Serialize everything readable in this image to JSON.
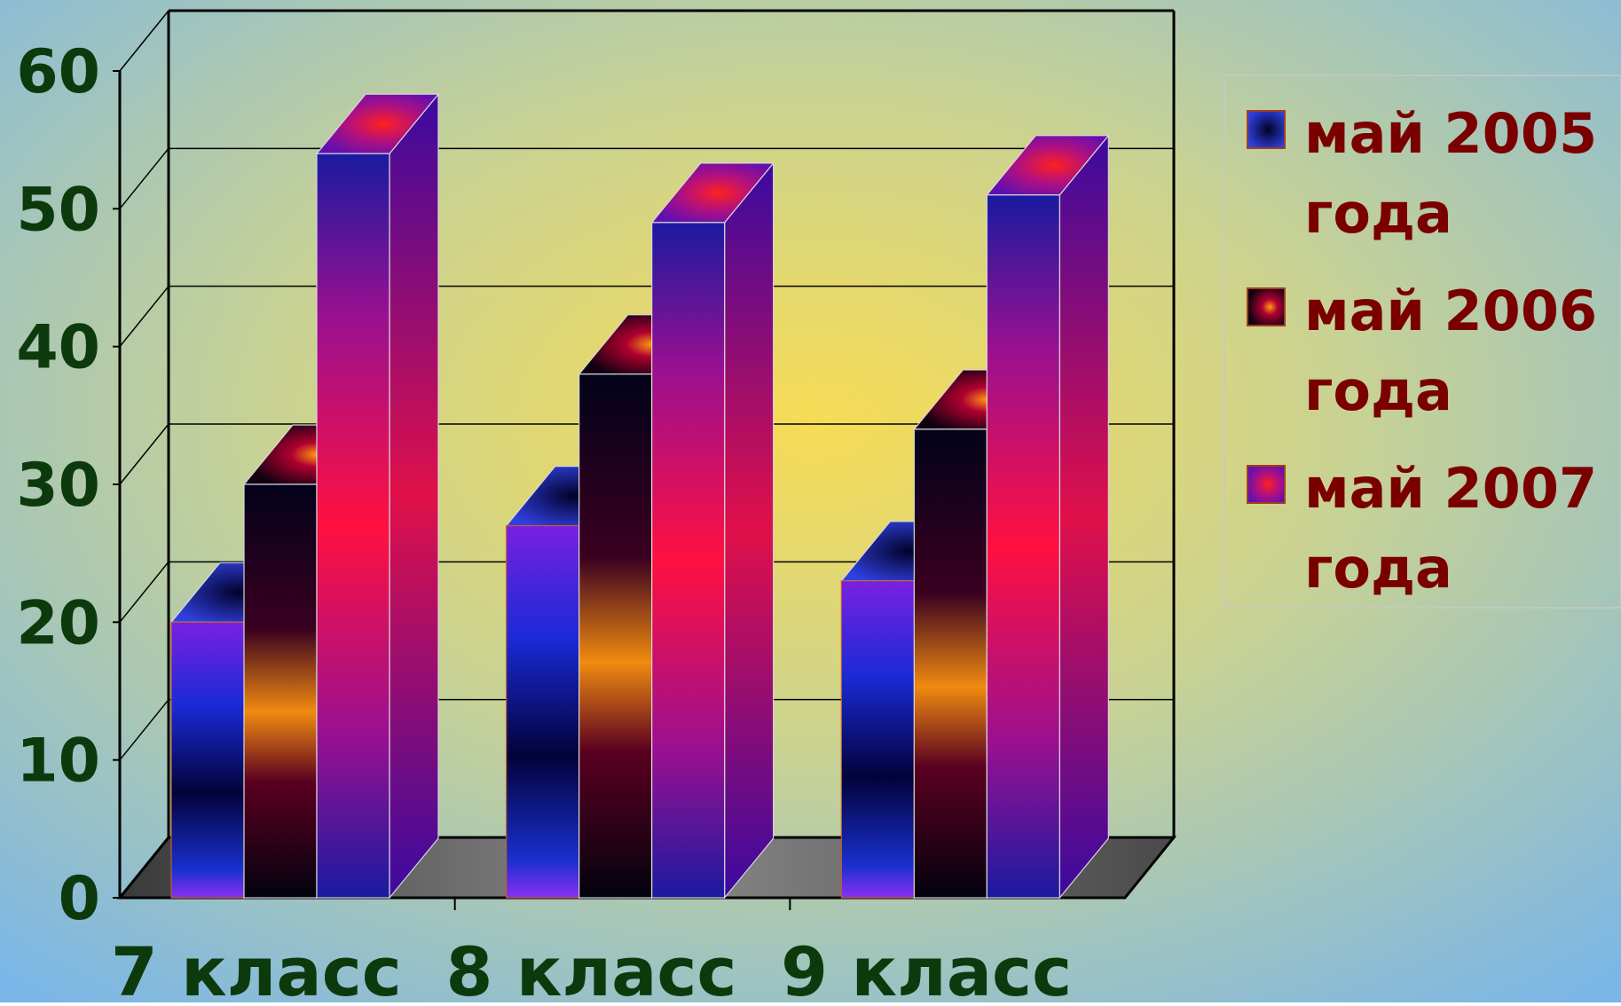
{
  "chart_data": {
    "type": "bar",
    "title": "",
    "xlabel": "",
    "ylabel": "",
    "ylim": [
      0,
      60
    ],
    "yticks": [
      0,
      10,
      20,
      30,
      40,
      50,
      60
    ],
    "grid": true,
    "three_d": true,
    "legend_position": "right",
    "categories": [
      "7 класс",
      "8 класс",
      "9 класс"
    ],
    "series": [
      {
        "name": "май 2005 года",
        "values": [
          20,
          27,
          23
        ],
        "color": "#2020c0"
      },
      {
        "name": "май 2006 года",
        "values": [
          30,
          38,
          34
        ],
        "color": "#100010"
      },
      {
        "name": "май 2007 года",
        "values": [
          54,
          49,
          51
        ],
        "color": "#c01060"
      }
    ],
    "colors": {
      "tick_label": "#0d3a0d",
      "legend_text": "#7a0000",
      "background_center": "#f7dc55",
      "background_edge": "#7ab6e8"
    }
  }
}
